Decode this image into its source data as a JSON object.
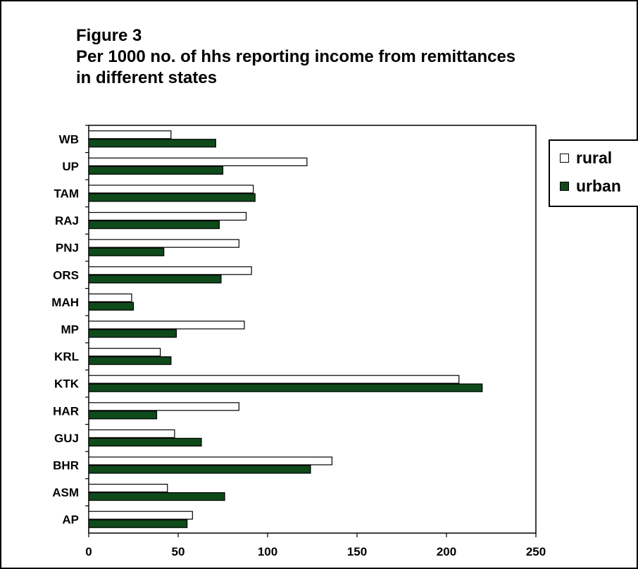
{
  "figure": {
    "number": "Figure 3",
    "title_line1": "Per 1000 no. of  hhs reporting income from  remittances",
    "title_line2": "in different states"
  },
  "legend": {
    "placement": "right",
    "items": [
      {
        "label": "rural",
        "color": "#ffffff"
      },
      {
        "label": "urban",
        "color": "#0e4a1a"
      }
    ]
  },
  "chart_data": {
    "type": "bar",
    "orientation": "horizontal",
    "categories": [
      "AP",
      "ASM",
      "BHR",
      "GUJ",
      "HAR",
      "KTK",
      "KRL",
      "MP",
      "MAH",
      "ORS",
      "PNJ",
      "RAJ",
      "TAM",
      "UP",
      "WB"
    ],
    "series": [
      {
        "name": "rural",
        "color": "#ffffff",
        "values": [
          58,
          44,
          136,
          48,
          84,
          207,
          40,
          87,
          24,
          91,
          84,
          88,
          92,
          122,
          46
        ]
      },
      {
        "name": "urban",
        "color": "#0e4a1a",
        "values": [
          55,
          76,
          124,
          63,
          38,
          220,
          46,
          49,
          25,
          74,
          42,
          73,
          93,
          75,
          71
        ]
      }
    ],
    "xlim": [
      0,
      250
    ],
    "xticks": [
      "0",
      "50",
      "100",
      "150",
      "200",
      "250"
    ],
    "grid": false
  }
}
